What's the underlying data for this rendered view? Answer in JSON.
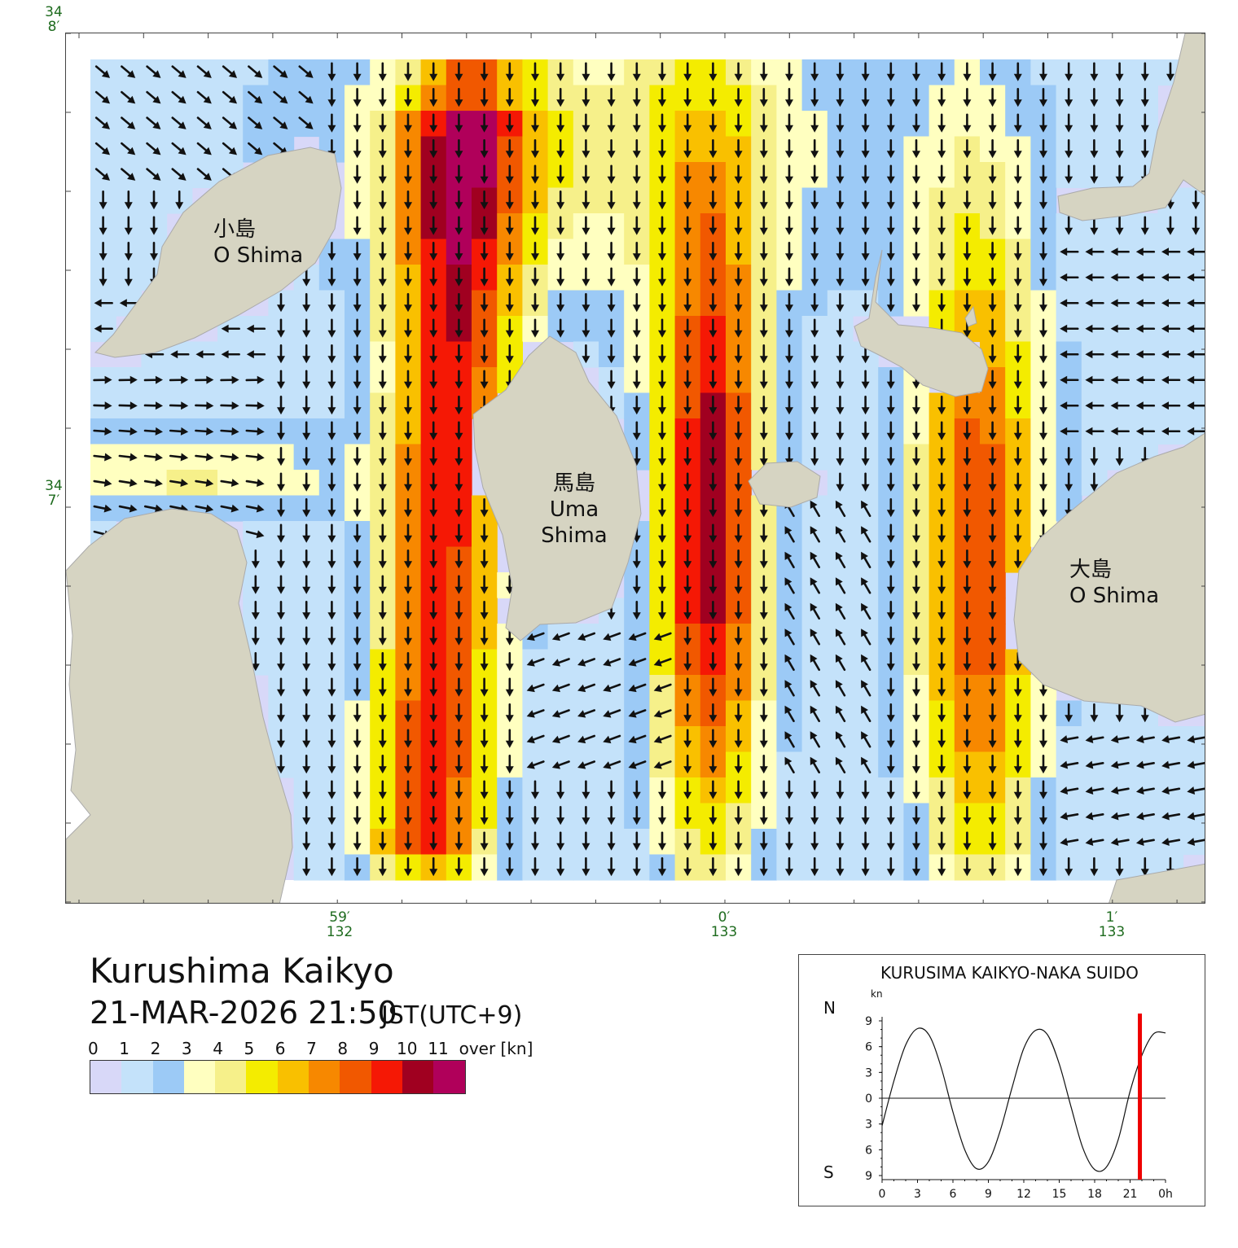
{
  "title": "Kurushima Kaikyo",
  "datetime": "21-MAR-2026 21:50",
  "timezone": "JST(UTC+9)",
  "islands": [
    {
      "name_ja": "小島",
      "name_en": "O Shima"
    },
    {
      "name_ja": "馬島",
      "name_en": "Uma Shima"
    },
    {
      "name_ja": "大島",
      "name_en": "O Shima"
    }
  ],
  "lat_labels": [
    {
      "deg": "34",
      "min": "8′"
    },
    {
      "deg": "34",
      "min": "7′"
    }
  ],
  "lon_labels": [
    {
      "min": "59′",
      "deg": "132"
    },
    {
      "min": "0′",
      "deg": "133"
    },
    {
      "min": "1′",
      "deg": "133"
    }
  ],
  "legend": {
    "ticks": [
      "0",
      "1",
      "2",
      "3",
      "4",
      "5",
      "6",
      "7",
      "8",
      "9",
      "10",
      "11",
      "over [kn]"
    ],
    "colors": [
      "#d8d8f8",
      "#c4e2fa",
      "#9ccaf6",
      "#ffffc0",
      "#f6f08a",
      "#f4ec00",
      "#f9c000",
      "#f78800",
      "#f15800",
      "#f51805",
      "#a00020",
      "#b0005a"
    ]
  },
  "tide_chart": {
    "title": "KURUSIMA KAIKYO-NAKA SUIDO",
    "unit": "kn",
    "north_label": "N",
    "south_label": "S",
    "y_tick_labels": [
      "9",
      "6",
      "3",
      "0",
      "3",
      "6",
      "9"
    ],
    "x_tick_labels": [
      "0",
      "3",
      "6",
      "9",
      "12",
      "15",
      "18",
      "21",
      "0h"
    ],
    "current_hour": 21.83,
    "current_color": "#ee0000",
    "chart_data": {
      "type": "line",
      "x": [
        0,
        1,
        2,
        3,
        4,
        5,
        6,
        7,
        8,
        9,
        10,
        11,
        12,
        13,
        14,
        15,
        16,
        17,
        18,
        19,
        20,
        21,
        22,
        23,
        24
      ],
      "series": [
        {
          "values": [
            -3.2,
            2.0,
            6.2,
            8.1,
            7.3,
            3.6,
            -1.6,
            -6.0,
            -8.2,
            -7.4,
            -3.8,
            1.2,
            5.8,
            7.9,
            7.4,
            4.0,
            -1.0,
            -5.8,
            -8.3,
            -8.0,
            -4.8,
            0.8,
            5.0,
            7.5,
            7.6
          ]
        }
      ],
      "xlim": [
        0,
        24
      ],
      "ylim": [
        -9,
        9
      ]
    }
  },
  "vector_field": {
    "grid_cols": 44,
    "grid_rows": 32
  }
}
